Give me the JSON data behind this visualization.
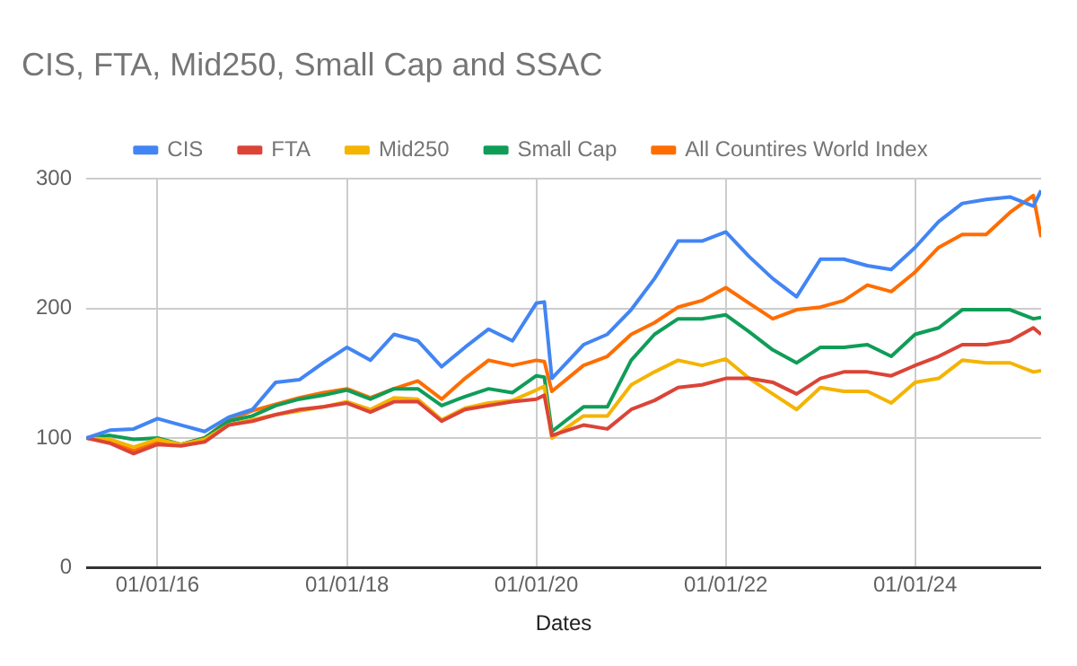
{
  "chart_data": {
    "type": "line",
    "title": "CIS, FTA, Mid250, Small Cap and SSAC",
    "xlabel": "Dates",
    "x": [
      "2015-04",
      "2015-07",
      "2015-10",
      "2016-01",
      "2016-04",
      "2016-07",
      "2016-10",
      "2017-01",
      "2017-04",
      "2017-07",
      "2017-10",
      "2018-01",
      "2018-04",
      "2018-07",
      "2018-10",
      "2019-01",
      "2019-04",
      "2019-07",
      "2019-10",
      "2020-01",
      "2020-02",
      "2020-03",
      "2020-07",
      "2020-10",
      "2021-01",
      "2021-04",
      "2021-07",
      "2021-10",
      "2022-01",
      "2022-04",
      "2022-07",
      "2022-10",
      "2023-01",
      "2023-04",
      "2023-07",
      "2023-10",
      "2024-01",
      "2024-04",
      "2024-07",
      "2024-10",
      "2025-01",
      "2025-04",
      "2025-05"
    ],
    "series": [
      {
        "name": "CIS",
        "color": "#4285f4",
        "values": [
          100,
          106,
          107,
          115,
          110,
          105,
          116,
          122,
          143,
          145,
          158,
          170,
          160,
          180,
          175,
          155,
          170,
          184,
          175,
          204,
          205,
          146,
          172,
          180,
          199,
          223,
          252,
          252,
          259,
          240,
          223,
          209,
          238,
          238,
          233,
          230,
          247,
          267,
          281,
          284,
          286,
          279,
          291
        ]
      },
      {
        "name": "FTA",
        "color": "#db4437",
        "values": [
          100,
          96,
          88,
          95,
          94,
          97,
          110,
          113,
          118,
          122,
          124,
          127,
          120,
          128,
          128,
          113,
          122,
          125,
          128,
          130,
          133,
          102,
          110,
          107,
          122,
          129,
          139,
          141,
          146,
          146,
          143,
          134,
          146,
          151,
          151,
          148,
          156,
          163,
          172,
          172,
          175,
          185,
          180
        ]
      },
      {
        "name": "Mid250",
        "color": "#f4b400",
        "values": [
          100,
          99,
          93,
          99,
          95,
          99,
          110,
          114,
          118,
          121,
          124,
          128,
          122,
          131,
          130,
          114,
          123,
          127,
          129,
          137,
          140,
          100,
          117,
          117,
          141,
          151,
          160,
          156,
          161,
          146,
          134,
          122,
          139,
          136,
          136,
          127,
          143,
          146,
          160,
          158,
          158,
          151,
          152
        ]
      },
      {
        "name": "Small Cap",
        "color": "#0f9d58",
        "values": [
          100,
          102,
          99,
          100,
          95,
          100,
          113,
          117,
          125,
          130,
          133,
          137,
          130,
          138,
          138,
          125,
          132,
          138,
          135,
          148,
          147,
          105,
          124,
          124,
          160,
          180,
          192,
          192,
          195,
          182,
          168,
          158,
          170,
          170,
          172,
          163,
          180,
          185,
          199,
          199,
          199,
          192,
          193
        ]
      },
      {
        "name": "All Countires World Index",
        "color": "#ff6d01",
        "values": [
          100,
          98,
          90,
          97,
          95,
          100,
          114,
          121,
          126,
          131,
          135,
          138,
          131,
          138,
          144,
          130,
          146,
          160,
          156,
          160,
          159,
          136,
          156,
          163,
          180,
          189,
          201,
          206,
          216,
          204,
          192,
          199,
          201,
          206,
          218,
          213,
          228,
          247,
          257,
          257,
          274,
          287,
          255
        ]
      }
    ],
    "xlim": [
      "2015-04-01",
      "2025-05-01"
    ],
    "xticks": [
      {
        "value": "2016-01-01",
        "label": "01/01/16"
      },
      {
        "value": "2018-01-01",
        "label": "01/01/18"
      },
      {
        "value": "2020-01-01",
        "label": "01/01/20"
      },
      {
        "value": "2022-01-01",
        "label": "01/01/22"
      },
      {
        "value": "2024-01-01",
        "label": "01/01/24"
      }
    ],
    "ylim": [
      0,
      300
    ],
    "yticks": [
      0,
      100,
      200,
      300
    ],
    "grid": true,
    "legend": "top",
    "marker": "none",
    "line_style": "solid"
  }
}
